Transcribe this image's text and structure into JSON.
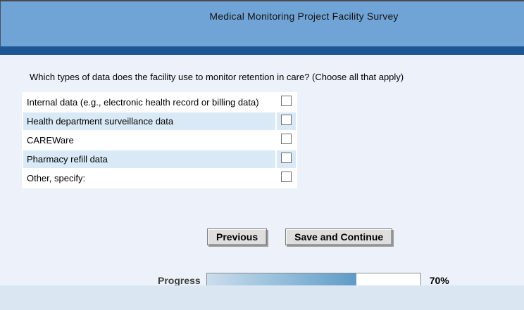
{
  "header": {
    "title": "Medical Monitoring Project Facility Survey"
  },
  "question": "Which types of data does the facility use to monitor retention in care? (Choose all that apply)",
  "options": [
    {
      "label": "Internal data (e.g., electronic health record or billing data)",
      "checked": false
    },
    {
      "label": "Health department surveillance data",
      "checked": false
    },
    {
      "label": "CAREWare",
      "checked": false
    },
    {
      "label": "Pharmacy refill data",
      "checked": false
    },
    {
      "label": "Other, specify:",
      "checked": false
    }
  ],
  "buttons": {
    "previous": "Previous",
    "save_and_continue": "Save and Continue"
  },
  "progress": {
    "label": "Progress",
    "percent": 70,
    "percent_label": "70%"
  },
  "colors": {
    "header_bg": "#71A4D6",
    "accent_bar": "#1E5796",
    "page_bg": "#EDF2FA",
    "footer_strip": "#DAE6F2",
    "row_alt": "#D9E9F5",
    "progress_fill_start": "#CADDEC",
    "progress_fill_end": "#5F9BC7"
  }
}
